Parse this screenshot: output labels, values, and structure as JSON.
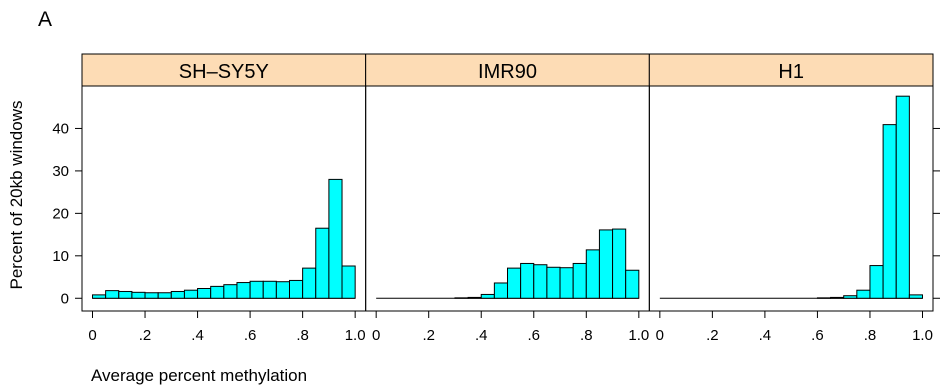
{
  "figure": {
    "panel_letter": "A",
    "ylabel": "Percent of 20kb windows",
    "xlabel": "Average percent methylation"
  },
  "colors": {
    "strip_fill": "#FDDCB5",
    "bar_fill": "#00FFFF",
    "axis": "#000000"
  },
  "chart_data": {
    "type": "bar",
    "subtype": "histogram",
    "x_ticks": [
      "0",
      ".2",
      ".4",
      ".6",
      ".8",
      "1.0"
    ],
    "x_tick_values": [
      0,
      0.2,
      0.4,
      0.6,
      0.8,
      1.0
    ],
    "y_ticks": [
      "0",
      "10",
      "20",
      "30",
      "40"
    ],
    "y_tick_values": [
      0,
      10,
      20,
      30,
      40
    ],
    "xlim": [
      -0.04,
      1.04
    ],
    "ylim": [
      -3,
      50
    ],
    "bin_width": 0.05,
    "panels": [
      {
        "name": "SH–SY5Y",
        "bin_starts": [
          0,
          0.05,
          0.1,
          0.15,
          0.2,
          0.25,
          0.3,
          0.35,
          0.4,
          0.45,
          0.5,
          0.55,
          0.6,
          0.65,
          0.7,
          0.75,
          0.8,
          0.85,
          0.9,
          0.95
        ],
        "values": [
          0.8,
          1.8,
          1.6,
          1.4,
          1.3,
          1.3,
          1.6,
          1.9,
          2.3,
          2.8,
          3.2,
          3.7,
          4.0,
          4.0,
          3.9,
          4.2,
          7.1,
          16.5,
          28.0,
          7.6
        ]
      },
      {
        "name": "IMR90",
        "bin_starts": [
          0,
          0.05,
          0.1,
          0.15,
          0.2,
          0.25,
          0.3,
          0.35,
          0.4,
          0.45,
          0.5,
          0.55,
          0.6,
          0.65,
          0.7,
          0.75,
          0.8,
          0.85,
          0.9,
          0.95
        ],
        "values": [
          0,
          0,
          0,
          0,
          0,
          0,
          0.1,
          0.2,
          0.9,
          3.6,
          7.1,
          8.2,
          7.9,
          7.3,
          7.2,
          8.2,
          11.4,
          16.1,
          16.3,
          6.6
        ]
      },
      {
        "name": "H1",
        "bin_starts": [
          0,
          0.05,
          0.1,
          0.15,
          0.2,
          0.25,
          0.3,
          0.35,
          0.4,
          0.45,
          0.5,
          0.55,
          0.6,
          0.65,
          0.7,
          0.75,
          0.8,
          0.85,
          0.9,
          0.95
        ],
        "values": [
          0,
          0,
          0,
          0,
          0,
          0,
          0,
          0,
          0,
          0,
          0,
          0,
          0.1,
          0.2,
          0.6,
          1.9,
          7.7,
          40.9,
          47.6,
          0.8
        ]
      }
    ]
  }
}
